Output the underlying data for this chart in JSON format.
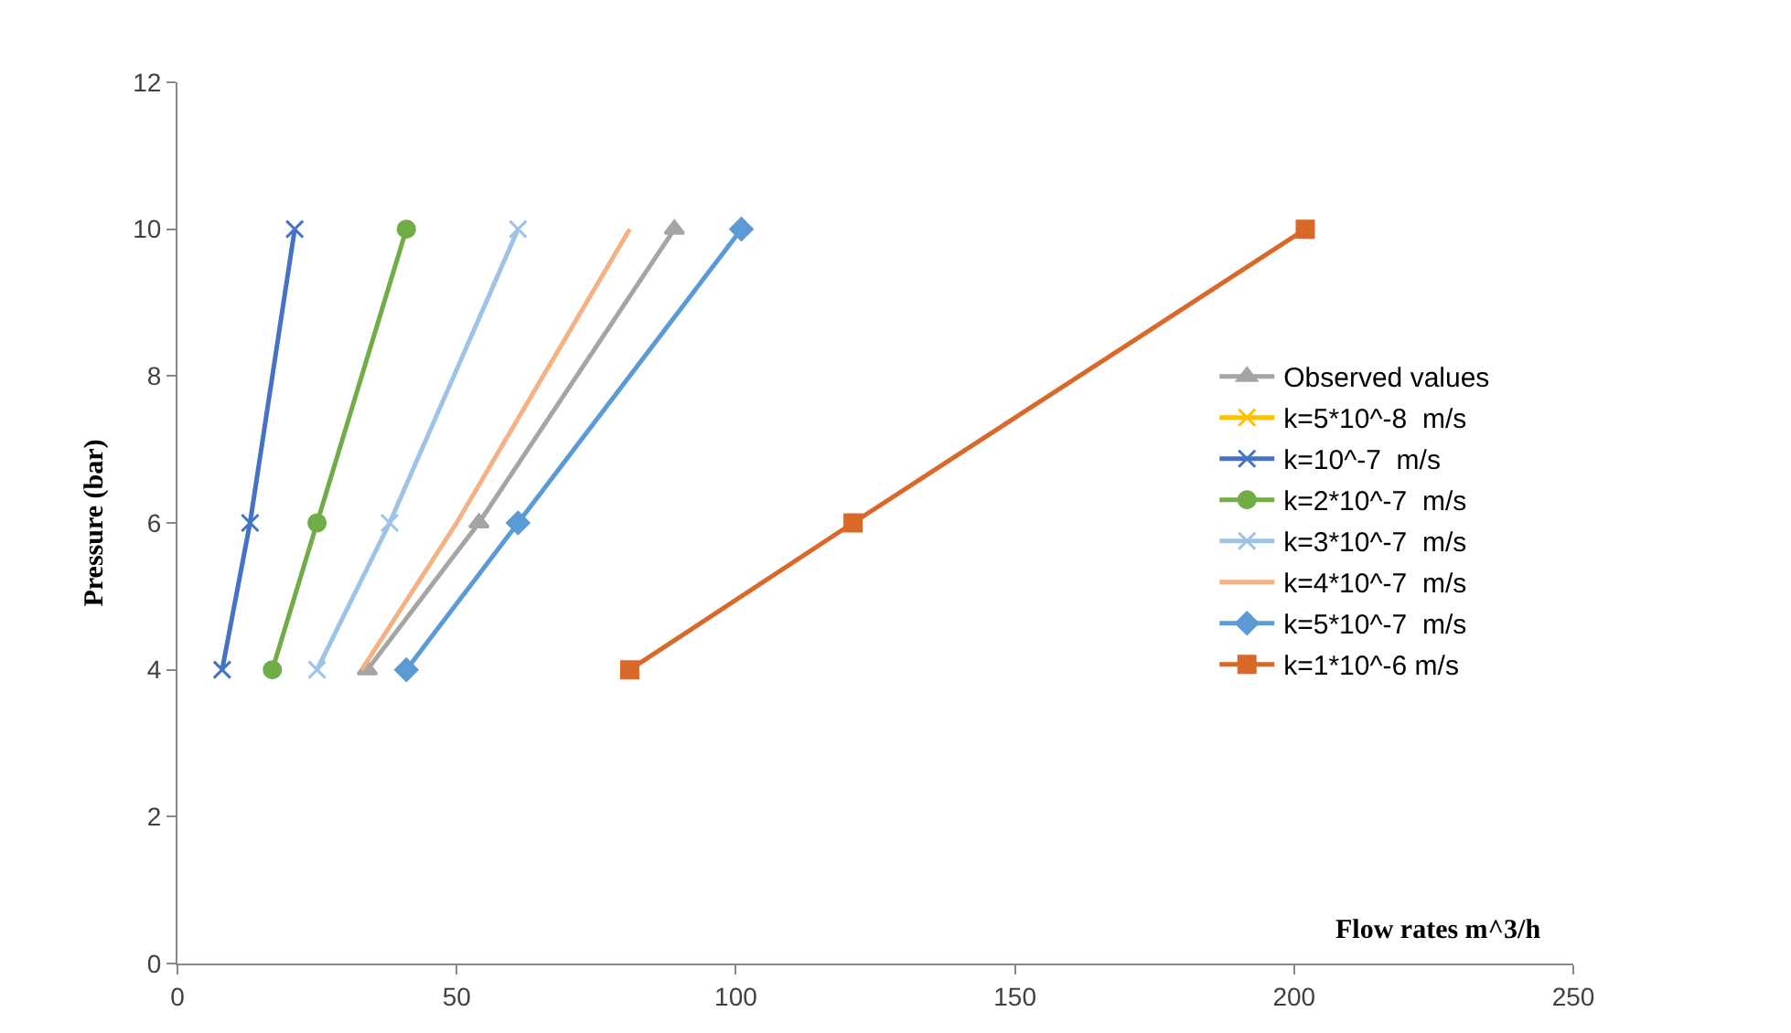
{
  "chart_data": {
    "type": "line",
    "xlabel": "Flow rates m^3/h",
    "ylabel": "Pressure (bar)",
    "xlim": [
      0,
      250
    ],
    "xticks": [
      0,
      50,
      100,
      150,
      200,
      250
    ],
    "ylim": [
      0,
      12
    ],
    "yticks": [
      0,
      2,
      4,
      6,
      8,
      10,
      12
    ],
    "grid": false,
    "legend": "right",
    "series": [
      {
        "name": "Observed values",
        "color": "#a5a5a5",
        "marker": "triangle",
        "x": [
          34,
          54,
          89
        ],
        "values": [
          4,
          6,
          10
        ]
      },
      {
        "name": "k=5*10^-8  m/s",
        "color": "#ffc000",
        "marker": "cross",
        "values": [
          null,
          null,
          null
        ]
      },
      {
        "name": "k=10^-7  m/s",
        "color": "#4472c4",
        "marker": "cross",
        "x": [
          8,
          13,
          21
        ],
        "values": [
          4,
          6,
          10
        ]
      },
      {
        "name": "k=2*10^-7  m/s",
        "color": "#70ad47",
        "marker": "circle",
        "x": [
          17,
          25,
          41
        ],
        "values": [
          4,
          6,
          10
        ]
      },
      {
        "name": "k=3*10^-7  m/s",
        "color": "#9dc3e6",
        "marker": "cross",
        "x": [
          25,
          38,
          61
        ],
        "values": [
          4,
          6,
          10
        ]
      },
      {
        "name": "k=4*10^-7  m/s",
        "color": "#f4b183",
        "marker": "none",
        "x": [
          33,
          50,
          81
        ],
        "values": [
          4,
          6,
          10
        ]
      },
      {
        "name": "k=5*10^-7  m/s",
        "color": "#5b9bd5",
        "marker": "diamond",
        "x": [
          41,
          61,
          101
        ],
        "values": [
          4,
          6,
          10
        ]
      },
      {
        "name": "k=1*10^-6 m/s",
        "color": "#d9692a",
        "marker": "square",
        "x": [
          81,
          121,
          202
        ],
        "values": [
          4,
          6,
          10
        ]
      }
    ]
  }
}
